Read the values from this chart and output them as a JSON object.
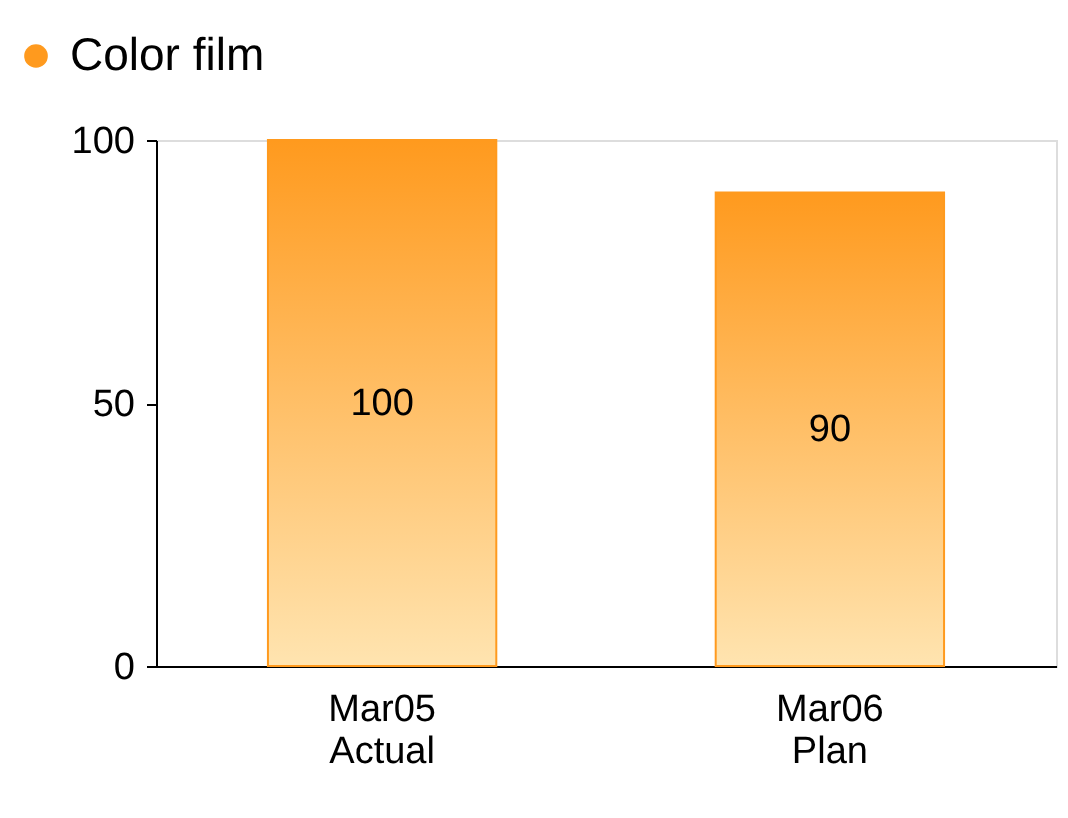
{
  "chart_data": {
    "type": "bar",
    "categories": [
      "Mar05\nActual",
      "Mar06\nPlan"
    ],
    "series": [
      {
        "name": "Color film",
        "color": "#ff9a1e",
        "values": [
          100,
          90
        ]
      }
    ],
    "ylim": [
      0,
      100
    ],
    "yticks": [
      0,
      50,
      100
    ],
    "data_labels": true,
    "legend": "top left",
    "grid": false
  }
}
